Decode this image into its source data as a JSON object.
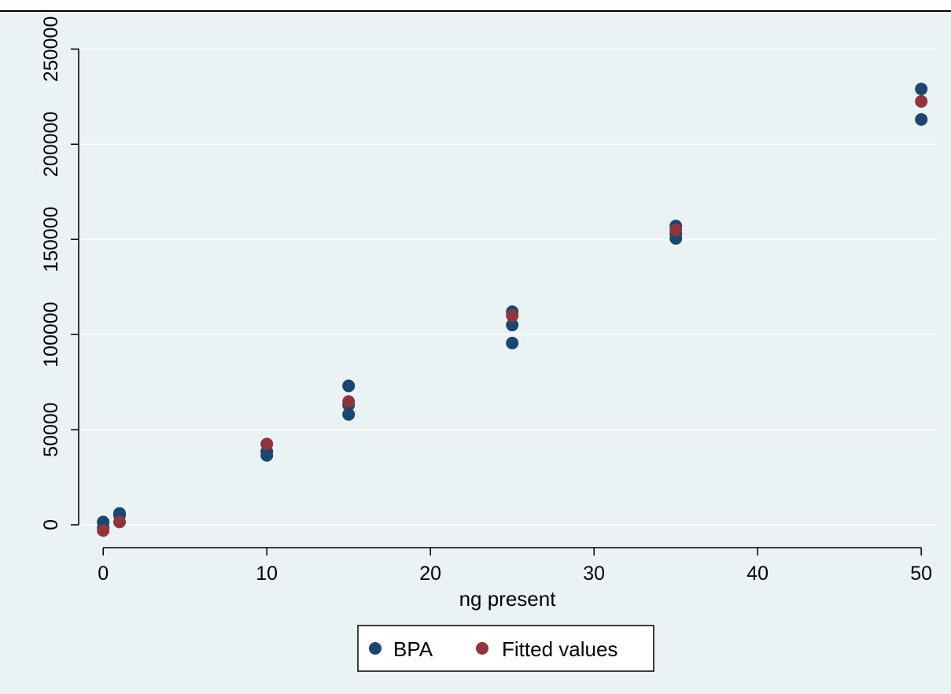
{
  "chart_data": {
    "type": "scatter",
    "title": "",
    "xlabel": "ng present",
    "ylabel": "",
    "xlim": [
      -1.5,
      51
    ],
    "ylim": [
      -12000,
      258000
    ],
    "x_ticks": [
      0,
      10,
      20,
      30,
      40,
      50
    ],
    "y_ticks": [
      0,
      50000,
      100000,
      150000,
      200000,
      250000
    ],
    "x_tick_labels": [
      "0",
      "10",
      "20",
      "30",
      "40",
      "50"
    ],
    "y_tick_labels": [
      "0",
      "50000",
      "100000",
      "150000",
      "200000",
      "250000"
    ],
    "grid": true,
    "legend_position": "bottom",
    "colors": {
      "plot_background": "#eaf2f3",
      "outer_background": "#eaf2f3",
      "grid": "#ffffff",
      "BPA": "#1a476f",
      "Fitted values": "#90353b"
    },
    "series": [
      {
        "name": "BPA",
        "color": "#1a476f",
        "points": [
          [
            0,
            1500
          ],
          [
            0,
            -1500
          ],
          [
            1,
            6000
          ],
          [
            1,
            5000
          ],
          [
            10,
            36500
          ],
          [
            10,
            38500
          ],
          [
            15,
            73000
          ],
          [
            15,
            58000
          ],
          [
            15,
            63000
          ],
          [
            25,
            112000
          ],
          [
            25,
            105000
          ],
          [
            25,
            95500
          ],
          [
            35,
            157000
          ],
          [
            35,
            150500
          ],
          [
            35,
            153000
          ],
          [
            50,
            229000
          ],
          [
            50,
            213000
          ]
        ]
      },
      {
        "name": "Fitted values",
        "color": "#90353b",
        "points": [
          [
            0,
            -3000
          ],
          [
            1,
            1500
          ],
          [
            10,
            42500
          ],
          [
            15,
            64800
          ],
          [
            25,
            110000
          ],
          [
            35,
            155000
          ],
          [
            50,
            222500
          ]
        ]
      }
    ]
  }
}
